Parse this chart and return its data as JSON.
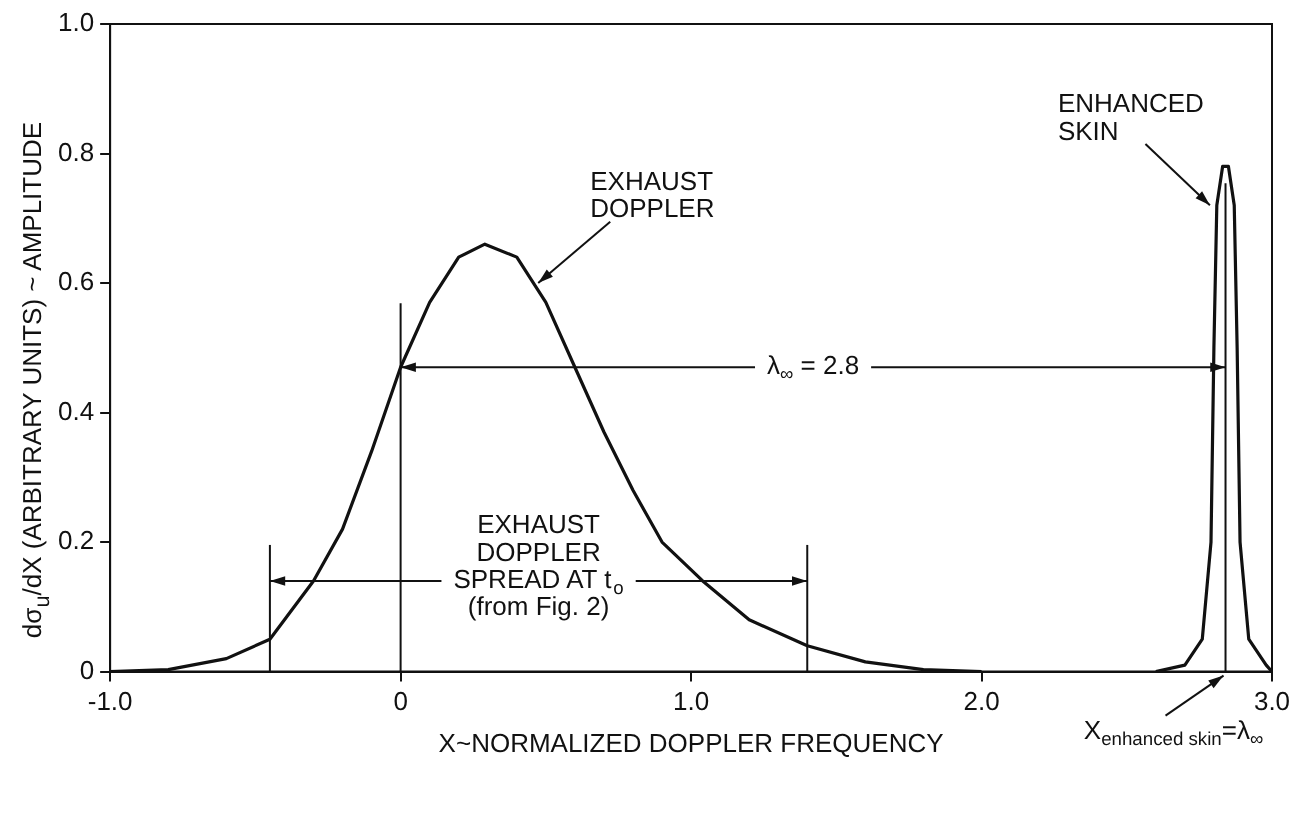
{
  "chart_data": {
    "type": "line",
    "xlabel": "X~NORMALIZED DOPPLER FREQUENCY",
    "ylabel": "dσ$_{u}$/dX (ARBITRARY UNITS) ~ AMPLITUDE",
    "xlim": [
      -1.0,
      3.0
    ],
    "ylim": [
      0,
      1.0
    ],
    "xticks": [
      {
        "value": -1,
        "label": "-1.0"
      },
      0,
      {
        "value": 1,
        "label": "1.0"
      },
      {
        "value": 2,
        "label": "2.0"
      },
      {
        "value": 3,
        "label": "3.0"
      }
    ],
    "yticks": [
      0,
      0.2,
      0.4,
      0.6,
      0.8,
      {
        "value": 1,
        "label": "1.0"
      }
    ],
    "grid": false,
    "legend": false,
    "series": [
      {
        "color": "#111111",
        "x": [
          -1.0,
          -0.8,
          -0.6,
          -0.45,
          -0.3,
          -0.2,
          -0.1,
          0,
          0.1,
          0.2,
          0.29,
          0.4,
          0.5,
          0.6,
          0.7,
          0.8,
          0.9,
          1.04,
          1.2,
          1.4,
          1.6,
          1.8,
          2.0
        ],
        "values": [
          0,
          0.003,
          0.02,
          0.05,
          0.14,
          0.22,
          0.34,
          0.47,
          0.57,
          0.64,
          0.66,
          0.64,
          0.57,
          0.47,
          0.37,
          0.28,
          0.2,
          0.14,
          0.08,
          0.04,
          0.015,
          0.003,
          0
        ]
      },
      {
        "color": "#111111",
        "x": [
          2.6,
          2.7,
          2.76,
          2.79,
          2.8,
          2.81,
          2.83,
          2.85,
          2.87,
          2.88,
          2.89,
          2.92,
          2.98,
          3.0
        ],
        "values": [
          0,
          0.01,
          0.05,
          0.2,
          0.5,
          0.72,
          0.78,
          0.78,
          0.72,
          0.5,
          0.2,
          0.05,
          0.01,
          0
        ]
      }
    ],
    "ref_lines": [
      {
        "axis": "x",
        "value": -0.45
      },
      {
        "axis": "x",
        "value": 0
      },
      {
        "axis": "x",
        "value": 1.4
      },
      {
        "axis": "x",
        "value": 2.84
      }
    ],
    "annotations": [
      {
        "text": "EXHAUST\nDOPPLER",
        "x": 0.46,
        "y": 0.6
      },
      {
        "text": "ENHANCED\nSKIN",
        "x": 2.8,
        "y": 0.72
      },
      {
        "text": "λ$_{∞}$ = 2.8",
        "x": 0,
        "y": 0.47
      },
      {
        "text": "EXHAUST\nDOPPLER\nSPREAD AT t$_{o}$\n(from Fig. 2)",
        "x": -0.45,
        "y": 0.14
      },
      {
        "text": "X$_{enhanced skin}$=λ$_{∞}$",
        "x": 2.84,
        "y": 0
      }
    ]
  }
}
